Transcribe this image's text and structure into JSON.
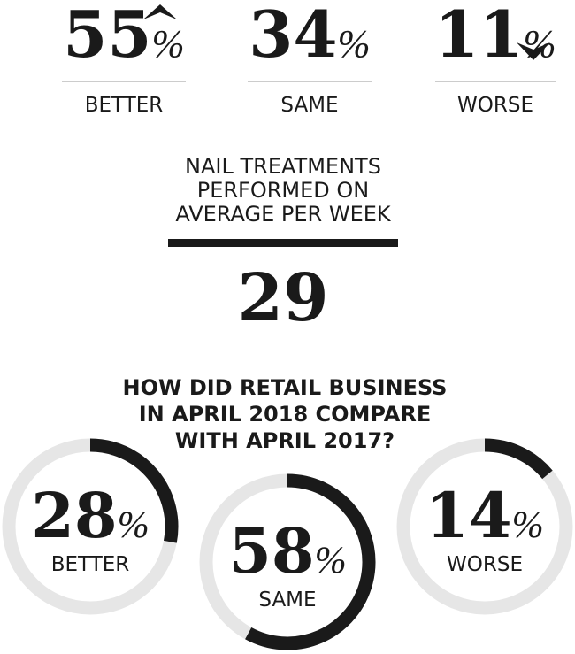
{
  "top_stats": [
    {
      "value": 55,
      "suffix": "%",
      "label": "BETTER"
    },
    {
      "value": 34,
      "suffix": "%",
      "label": "SAME"
    },
    {
      "value": 11,
      "suffix": "%",
      "label": "WORSE"
    }
  ],
  "treatments": {
    "heading": [
      "NAIL TREATMENTS",
      "PERFORMED ON",
      "AVERAGE PER WEEK"
    ],
    "value": 29
  },
  "retail": {
    "question": [
      "HOW DID RETAIL BUSINESS",
      "IN APRIL 2018 COMPARE",
      "WITH APRIL 2017?"
    ],
    "donuts": [
      {
        "value": 28,
        "suffix": "%",
        "label": "BETTER"
      },
      {
        "value": 58,
        "suffix": "%",
        "label": "SAME"
      },
      {
        "value": 14,
        "suffix": "%",
        "label": "WORSE"
      }
    ]
  }
}
